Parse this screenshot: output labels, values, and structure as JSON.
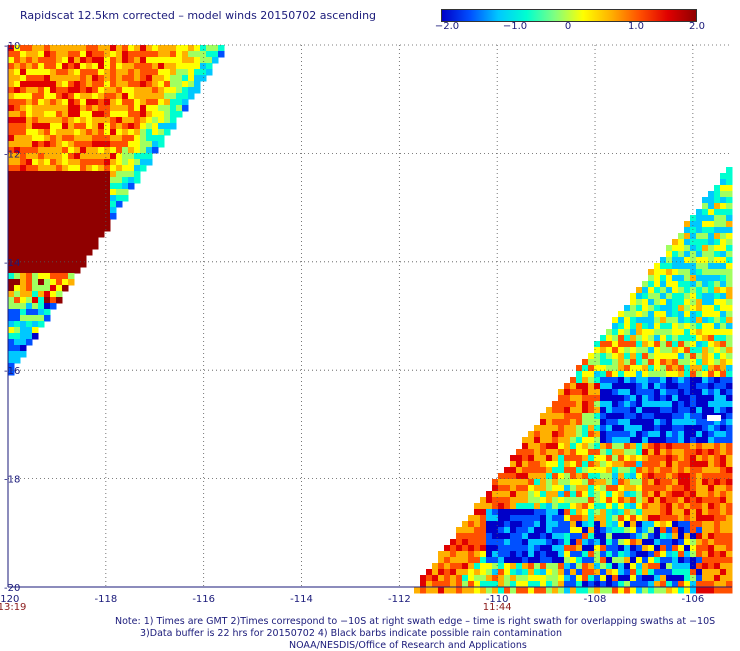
{
  "title": "Rapidscat 12.5km corrected – model winds 20150702 ascending",
  "colorbar": {
    "ticks": [
      "−2.0",
      "−1.0",
      "0",
      "1.0",
      "2.0"
    ],
    "tick_values": [
      -2.0,
      -1.0,
      0,
      1.0,
      2.0
    ],
    "colors": [
      "#0000c8",
      "#0050ff",
      "#00c8ff",
      "#00ffd0",
      "#80ff80",
      "#ffff00",
      "#ffb000",
      "#ff5000",
      "#e00000",
      "#900000"
    ]
  },
  "map": {
    "lon_range": [
      -120,
      -105.2
    ],
    "lat_range": [
      -20,
      -10
    ],
    "x_ticks": [
      "-120",
      "-118",
      "-116",
      "-114",
      "-112",
      "-110",
      "-108",
      "-106"
    ],
    "x_tick_values": [
      -120,
      -118,
      -116,
      -114,
      -112,
      -110,
      -108,
      -106
    ],
    "y_ticks": [
      "-10",
      "-12",
      "-14",
      "-16",
      "-18",
      "-20"
    ],
    "y_tick_values": [
      -10,
      -12,
      -14,
      -16,
      -18,
      -20
    ],
    "grid": "dotted",
    "times": [
      {
        "label": "13:19",
        "lon": -120
      },
      {
        "label": "11:44",
        "lon": -110
      }
    ]
  },
  "notes": {
    "line1": "Note: 1) Times are GMT 2)Times correspond to −10S at right swath edge – time is right swath for overlapping swaths at −10S",
    "line2": "3)Data buffer is 22 hrs for 20150702 4) Black barbs indicate possible rain contamination",
    "line3": "NOAA/NESDIS/Office of Research and Applications"
  }
}
